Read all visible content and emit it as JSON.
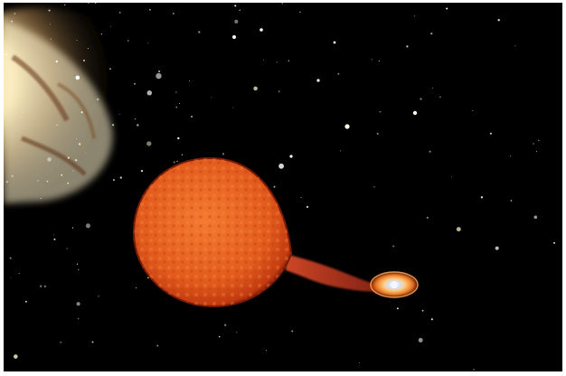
{
  "image": {
    "description_free": true,
    "colors": {
      "frame": "#ffffff",
      "space": "#000000",
      "giant_star": "#e8561c",
      "giant_rim": "#a8200a",
      "mass_stream": "#c83a20",
      "accretion_disk": "#f09030",
      "compact_star": "#eef4ff",
      "galaxy_core": "#fff6d8"
    }
  }
}
